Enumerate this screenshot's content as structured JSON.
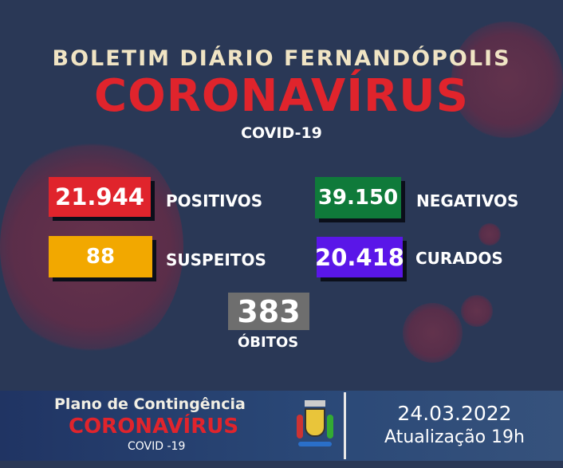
{
  "header": {
    "title": "BOLETIM DIÁRIO FERNANDÓPOLIS",
    "headline": "CORONAVÍRUS",
    "subtitle": "COVID-19"
  },
  "stats": {
    "positivos": {
      "value": "21.944",
      "label": "POSITIVOS",
      "color": "#e0242c"
    },
    "negativos": {
      "value": "39.150",
      "label": "NEGATIVOS",
      "color": "#0f7a3a"
    },
    "suspeitos": {
      "value": "88",
      "label": "SUSPEITOS",
      "color": "#f2a800"
    },
    "curados": {
      "value": "20.418",
      "label": "CURADOS",
      "color": "#5a16e8"
    },
    "obitos": {
      "value": "383",
      "label": "ÓBITOS",
      "color": "#6e6e6e"
    }
  },
  "footer": {
    "plan": "Plano de Contingência",
    "headline": "CORONAVÍRUS",
    "subtitle": "COVID -19",
    "date": "24.03.2022",
    "update": "Atualização 19h"
  }
}
